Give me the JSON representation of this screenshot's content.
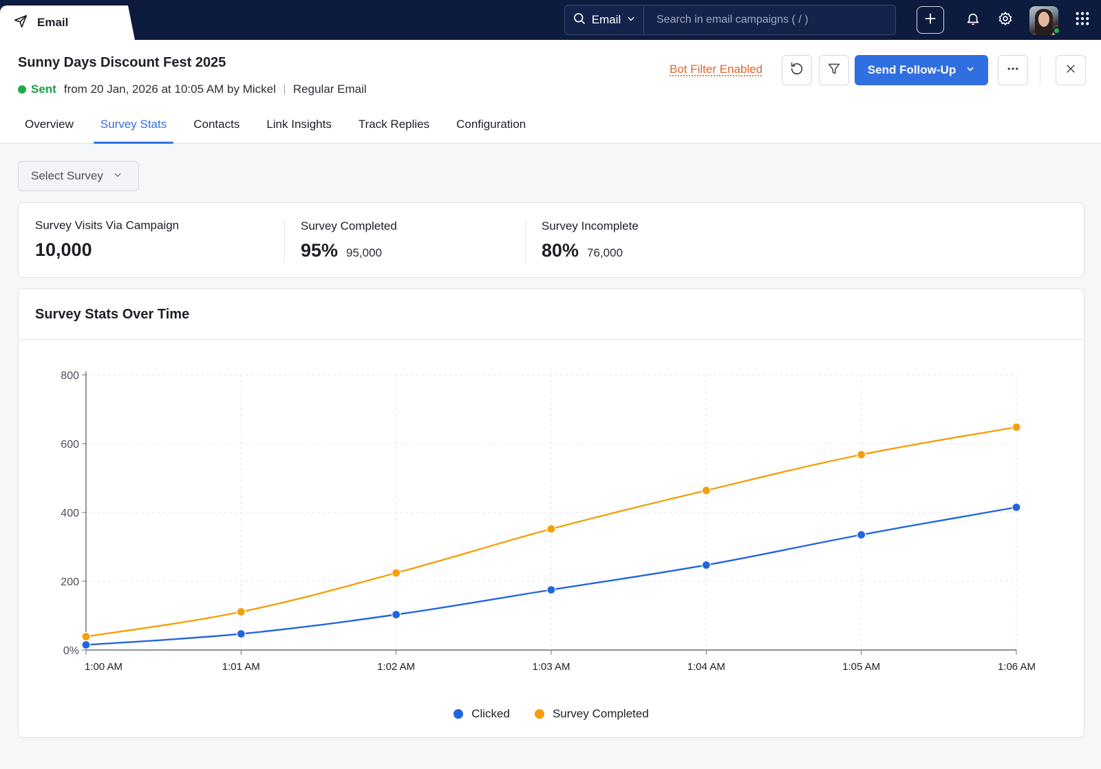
{
  "topbar": {
    "module_tab": "Email",
    "search_scope": "Email",
    "search_placeholder": "Search in email campaigns ( / )",
    "icons": [
      "paper-plane-icon",
      "search-icon",
      "plus-icon",
      "bell-icon",
      "gear-icon",
      "apps-grid-icon"
    ]
  },
  "campaign": {
    "title": "Sunny Days Discount Fest 2025",
    "status": "Sent",
    "sent_info": "from 20 Jan, 2026 at 10:05 AM by Mickel",
    "type": "Regular Email",
    "bot_filter": "Bot Filter Enabled",
    "follow_up_label": "Send Follow-Up"
  },
  "tabs": [
    {
      "label": "Overview",
      "active": false
    },
    {
      "label": "Survey Stats",
      "active": true
    },
    {
      "label": "Contacts",
      "active": false
    },
    {
      "label": "Link Insights",
      "active": false
    },
    {
      "label": "Track Replies",
      "active": false
    },
    {
      "label": "Configuration",
      "active": false
    }
  ],
  "survey_select": {
    "label": "Select Survey"
  },
  "stats": {
    "visits": {
      "label": "Survey Visits Via Campaign",
      "value": "10,000"
    },
    "completed": {
      "label": "Survey Completed",
      "percent": "95%",
      "count": "95,000"
    },
    "incomplete": {
      "label": "Survey Incomplete",
      "percent": "80%",
      "count": "76,000"
    }
  },
  "colors": {
    "primary": "#2f6fe0",
    "clicked": "#2266dd",
    "completed": "#f59e0b",
    "sent": "#1faa4b",
    "bot_filter": "#e0642e",
    "navy": "#0d1b3e"
  },
  "chart_data": {
    "type": "line",
    "title": "Survey Stats Over Time",
    "categories": [
      "1:00 AM",
      "1:01 AM",
      "1:02 AM",
      "1:03 AM",
      "1:04 AM",
      "1:05 AM",
      "1:06 AM"
    ],
    "y_ticks": [
      "0%",
      "200",
      "400",
      "600",
      "800"
    ],
    "ylim": [
      0,
      800
    ],
    "grid": true,
    "legend_position": "bottom-center",
    "series": [
      {
        "name": "Clicked",
        "color": "#2266dd",
        "values": [
          15,
          47,
          103,
          175,
          247,
          335,
          415
        ]
      },
      {
        "name": "Survey Completed",
        "color": "#f59e0b",
        "values": [
          39,
          111,
          224,
          352,
          464,
          568,
          648
        ]
      }
    ]
  }
}
